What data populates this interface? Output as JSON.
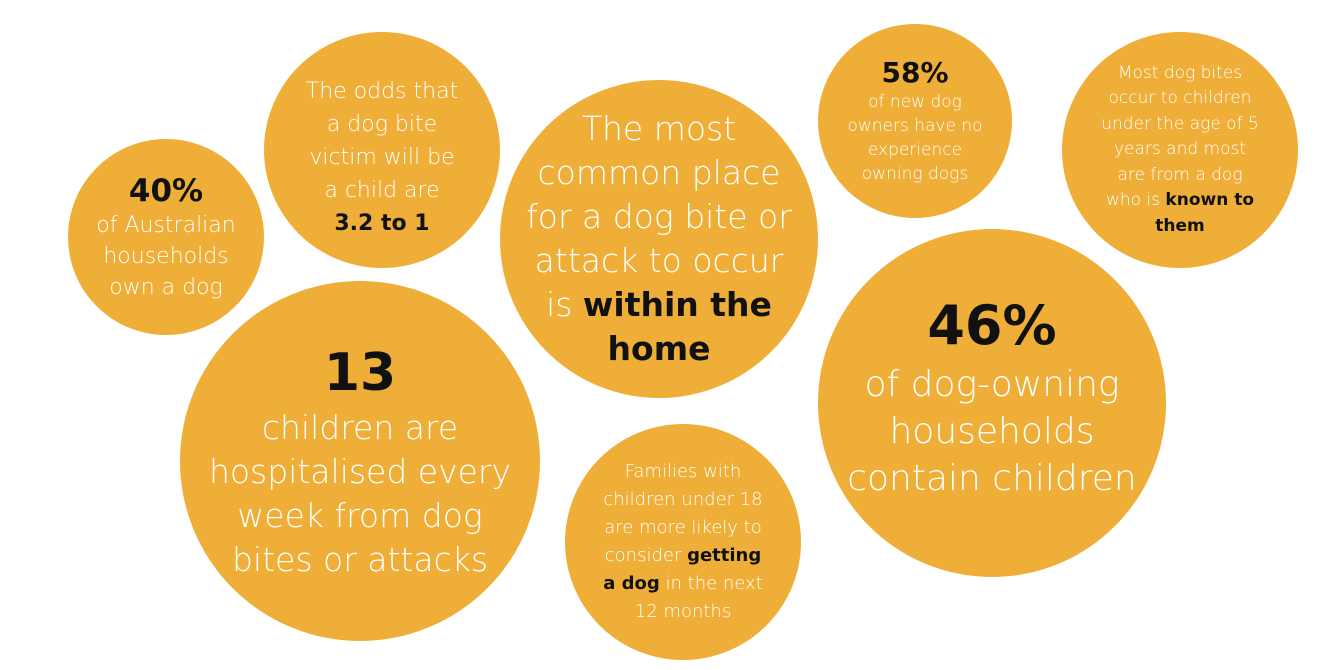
{
  "theme": {
    "circle_color": "#EEAE38",
    "text_color": "#FFFFFF",
    "highlight_color": "#111111"
  },
  "circles": [
    {
      "id": "australian-households",
      "headline": "40%",
      "lines": [
        [
          {
            "text": "of Australian"
          }
        ],
        [
          {
            "text": "households"
          }
        ],
        [
          {
            "text": "own a dog"
          }
        ]
      ]
    },
    {
      "id": "odds-child-victim",
      "headline": "",
      "lines": [
        [
          {
            "text": "The odds that"
          }
        ],
        [
          {
            "text": "a dog bite"
          }
        ],
        [
          {
            "text": "victim will be"
          }
        ],
        [
          {
            "text": "a child are"
          }
        ],
        [
          {
            "text": "3.2 to 1",
            "bold": true
          }
        ]
      ]
    },
    {
      "id": "common-place",
      "headline": "",
      "lines": [
        [
          {
            "text": "The most"
          }
        ],
        [
          {
            "text": "common place"
          }
        ],
        [
          {
            "text": "for a dog bite or"
          }
        ],
        [
          {
            "text": "attack to occur"
          }
        ],
        [
          {
            "text": "is "
          },
          {
            "text": "within the",
            "bold": true
          }
        ],
        [
          {
            "text": "home",
            "bold": true
          }
        ]
      ]
    },
    {
      "id": "new-owners",
      "headline": "58%",
      "lines": [
        [
          {
            "text": "of new dog"
          }
        ],
        [
          {
            "text": "owners have no"
          }
        ],
        [
          {
            "text": "experience"
          }
        ],
        [
          {
            "text": "owning dogs"
          }
        ]
      ]
    },
    {
      "id": "children-under-5",
      "headline": "",
      "lines": [
        [
          {
            "text": "Most dog bites"
          }
        ],
        [
          {
            "text": "occur to children"
          }
        ],
        [
          {
            "text": "under the age of 5"
          }
        ],
        [
          {
            "text": "years and most"
          }
        ],
        [
          {
            "text": "are from a dog"
          }
        ],
        [
          {
            "text": "who is "
          },
          {
            "text": "known to",
            "bold": true
          }
        ],
        [
          {
            "text": "them",
            "bold": true
          }
        ]
      ]
    },
    {
      "id": "hospitalised-weekly",
      "headline": "13",
      "lines": [
        [
          {
            "text": "children are"
          }
        ],
        [
          {
            "text": "hospitalised every"
          }
        ],
        [
          {
            "text": "week from dog"
          }
        ],
        [
          {
            "text": "bites or attacks"
          }
        ]
      ]
    },
    {
      "id": "families-getting-dog",
      "headline": "",
      "lines": [
        [
          {
            "text": "Families with"
          }
        ],
        [
          {
            "text": "children under 18"
          }
        ],
        [
          {
            "text": "are more likely to"
          }
        ],
        [
          {
            "text": "consider "
          },
          {
            "text": "getting",
            "bold": true
          }
        ],
        [
          {
            "text": "a dog",
            "bold": true
          },
          {
            "text": " in the next"
          }
        ],
        [
          {
            "text": "12 months"
          }
        ]
      ]
    },
    {
      "id": "households-with-children",
      "headline": "46%",
      "lines": [
        [
          {
            "text": "of dog-owning"
          }
        ],
        [
          {
            "text": "households"
          }
        ],
        [
          {
            "text": "contain children"
          }
        ]
      ]
    }
  ]
}
